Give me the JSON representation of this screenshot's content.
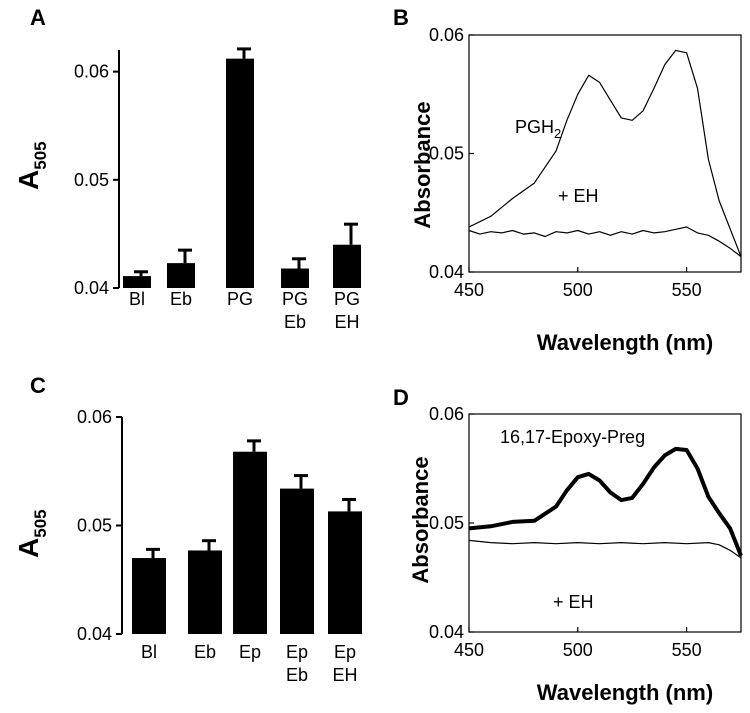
{
  "panels": {
    "A": {
      "label": "A",
      "ylabel_main": "A",
      "ylabel_sub": "505"
    },
    "B": {
      "label": "B",
      "ylabel": "Absorbance",
      "xlabel": "Wavelength (nm)",
      "ann_pgh_main": "PGH",
      "ann_pgh_sub": "2",
      "ann_eh": "+ EH"
    },
    "C": {
      "label": "C",
      "ylabel_main": "A",
      "ylabel_sub": "505"
    },
    "D": {
      "label": "D",
      "ylabel": "Absorbance",
      "xlabel": "Wavelength (nm)",
      "ann_epoxy": "16,17-Epoxy-Preg",
      "ann_eh": "+ EH"
    }
  },
  "chart_data": [
    {
      "panel": "A",
      "type": "bar",
      "categories": [
        [
          "Bl"
        ],
        [
          "Eb"
        ],
        [
          "PG"
        ],
        [
          "PG",
          "Eb"
        ],
        [
          "PG",
          "EH"
        ]
      ],
      "values": [
        0.0411,
        0.0423,
        0.0612,
        0.0418,
        0.044
      ],
      "errors": [
        0.0004,
        0.0012,
        0.0009,
        0.0009,
        0.0019
      ],
      "ylim": [
        0.04,
        0.062
      ],
      "yticks": [
        0.04,
        0.05,
        0.06
      ],
      "ytick_labels": [
        "0.04",
        "0.05",
        "0.06"
      ],
      "ylabel": "A505",
      "colors": {
        "bar": "#000000"
      }
    },
    {
      "panel": "B",
      "type": "line",
      "xlim": [
        450,
        575
      ],
      "ylim": [
        0.04,
        0.06
      ],
      "xticks": [
        450,
        500,
        550
      ],
      "xtick_labels": [
        "450",
        "500",
        "550"
      ],
      "yticks": [
        0.04,
        0.05,
        0.06
      ],
      "ytick_labels": [
        "0.04",
        "0.05",
        "0.06"
      ],
      "xlabel": "Wavelength (nm)",
      "ylabel": "Absorbance",
      "series": [
        {
          "name": "PGH2",
          "x": [
            450,
            460,
            470,
            480,
            490,
            495,
            500,
            505,
            510,
            515,
            520,
            525,
            530,
            535,
            540,
            545,
            550,
            555,
            560,
            565,
            575
          ],
          "y": [
            0.0438,
            0.0447,
            0.0462,
            0.0475,
            0.0502,
            0.0528,
            0.055,
            0.0566,
            0.056,
            0.0545,
            0.053,
            0.0528,
            0.0536,
            0.0555,
            0.0575,
            0.0587,
            0.0585,
            0.0555,
            0.0495,
            0.046,
            0.0413
          ]
        },
        {
          "name": "+ EH",
          "x": [
            450,
            455,
            460,
            465,
            470,
            475,
            480,
            485,
            490,
            495,
            500,
            505,
            510,
            515,
            520,
            525,
            530,
            535,
            540,
            545,
            550,
            555,
            560,
            565,
            570,
            575
          ],
          "y": [
            0.0435,
            0.0432,
            0.0434,
            0.0433,
            0.0435,
            0.0432,
            0.0433,
            0.043,
            0.0434,
            0.0433,
            0.0435,
            0.0432,
            0.0434,
            0.0431,
            0.0434,
            0.0432,
            0.0435,
            0.0433,
            0.0434,
            0.0436,
            0.0438,
            0.0433,
            0.0431,
            0.0426,
            0.042,
            0.0413
          ]
        }
      ]
    },
    {
      "panel": "C",
      "type": "bar",
      "categories": [
        [
          "Bl"
        ],
        [
          "Eb"
        ],
        [
          "Ep"
        ],
        [
          "Ep",
          "Eb"
        ],
        [
          "Ep",
          "EH"
        ]
      ],
      "values": [
        0.047,
        0.0477,
        0.0568,
        0.0534,
        0.0513
      ],
      "errors": [
        0.0008,
        0.0009,
        0.001,
        0.0012,
        0.0011
      ],
      "ylim": [
        0.04,
        0.06
      ],
      "yticks": [
        0.04,
        0.05,
        0.06
      ],
      "ytick_labels": [
        "0.04",
        "0.05",
        "0.06"
      ],
      "ylabel": "A505",
      "colors": {
        "bar": "#000000"
      }
    },
    {
      "panel": "D",
      "type": "line",
      "xlim": [
        450,
        575
      ],
      "ylim": [
        0.04,
        0.06
      ],
      "xticks": [
        450,
        500,
        550
      ],
      "xtick_labels": [
        "450",
        "500",
        "550"
      ],
      "yticks": [
        0.04,
        0.05,
        0.06
      ],
      "ytick_labels": [
        "0.04",
        "0.05",
        "0.06"
      ],
      "xlabel": "Wavelength (nm)",
      "ylabel": "Absorbance",
      "series": [
        {
          "name": "16,17-Epoxy-Preg",
          "x": [
            450,
            460,
            470,
            480,
            490,
            495,
            500,
            505,
            510,
            515,
            520,
            525,
            530,
            535,
            540,
            545,
            550,
            555,
            560,
            565,
            570,
            575
          ],
          "y": [
            0.0495,
            0.0497,
            0.0501,
            0.0502,
            0.0515,
            0.053,
            0.0542,
            0.0545,
            0.0539,
            0.0528,
            0.0521,
            0.0523,
            0.0536,
            0.0551,
            0.0562,
            0.0568,
            0.0567,
            0.055,
            0.0524,
            0.0509,
            0.0495,
            0.047
          ],
          "weight": "bold"
        },
        {
          "name": "+ EH",
          "x": [
            450,
            460,
            470,
            480,
            490,
            500,
            510,
            520,
            530,
            540,
            550,
            560,
            565,
            570,
            575
          ],
          "y": [
            0.0484,
            0.0482,
            0.0481,
            0.0482,
            0.0481,
            0.0482,
            0.0481,
            0.0482,
            0.0481,
            0.0482,
            0.0481,
            0.0482,
            0.048,
            0.0475,
            0.0468
          ],
          "weight": "thin"
        }
      ]
    }
  ]
}
